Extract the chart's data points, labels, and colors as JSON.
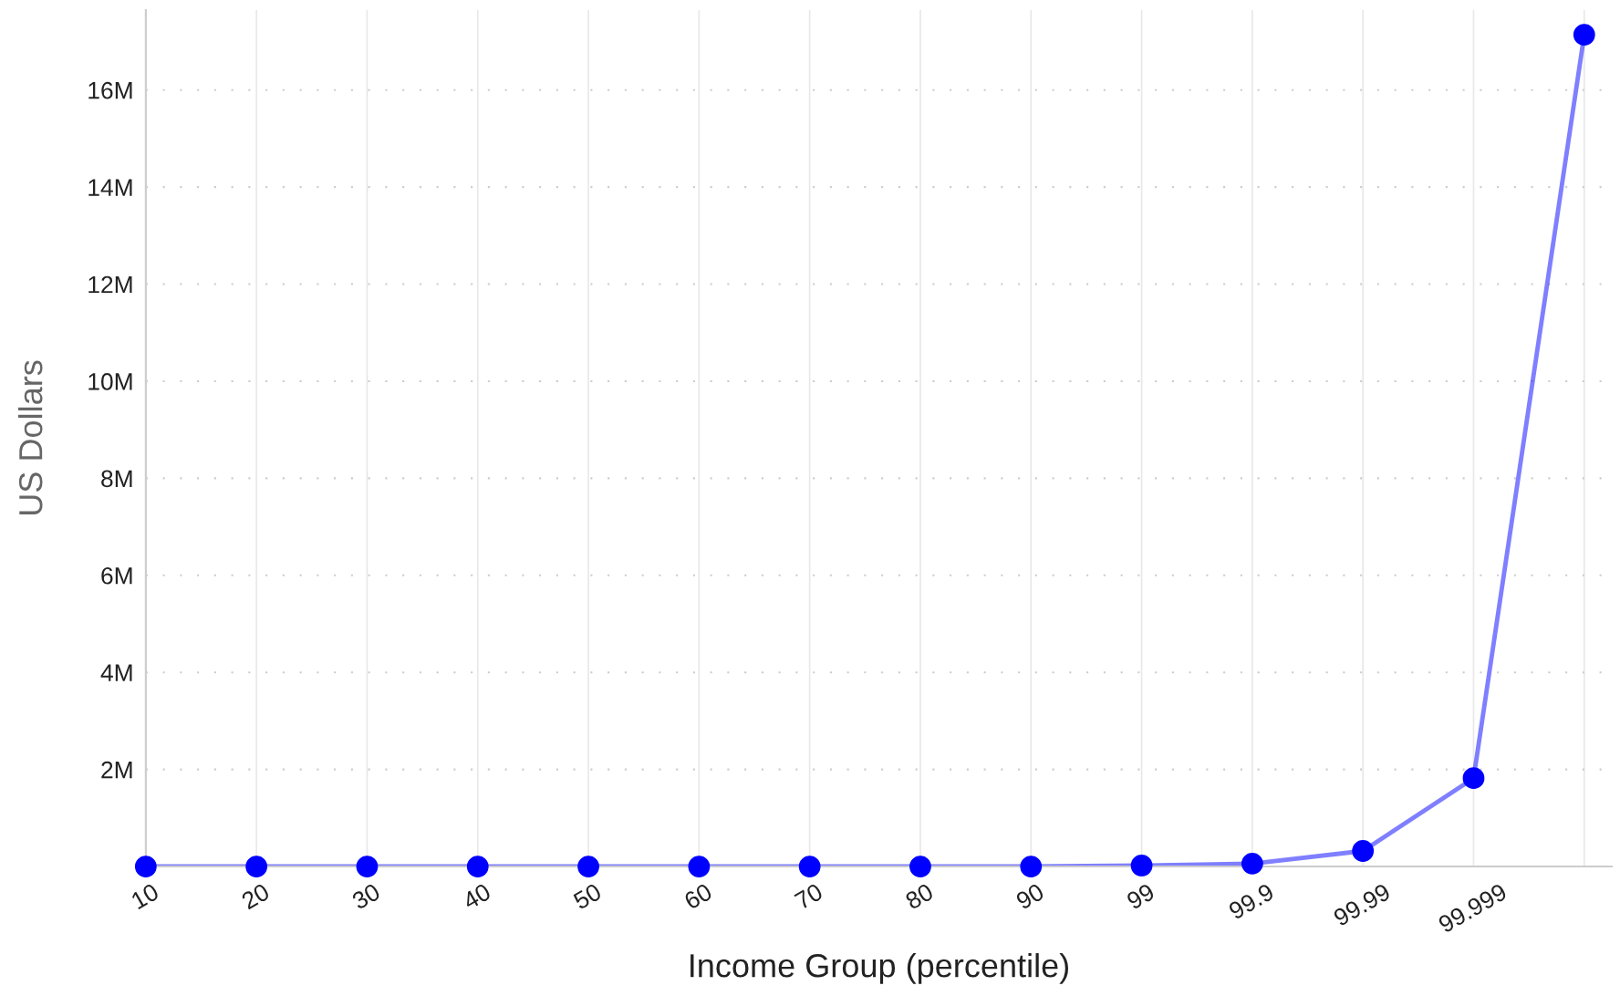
{
  "chart_data": {
    "type": "line",
    "xlabel": "Income Group (percentile)",
    "ylabel": "US Dollars",
    "categories": [
      "10",
      "20",
      "30",
      "40",
      "50",
      "60",
      "70",
      "80",
      "90",
      "99",
      "99.9",
      "99.99",
      "99.999",
      null
    ],
    "series": [
      {
        "color": "#0000ff",
        "values": [
          0,
          0,
          0,
          0,
          0,
          0,
          0,
          0,
          0,
          20000,
          60000,
          320000,
          1820000,
          17140000
        ]
      }
    ],
    "ylim": [
      0,
      17650000
    ],
    "yticks": [
      {
        "value": 2000000,
        "label": "2M"
      },
      {
        "value": 4000000,
        "label": "4M"
      },
      {
        "value": 6000000,
        "label": "6M"
      },
      {
        "value": 8000000,
        "label": "8M"
      },
      {
        "value": 10000000,
        "label": "10M"
      },
      {
        "value": 12000000,
        "label": "12M"
      },
      {
        "value": 14000000,
        "label": "14M"
      },
      {
        "value": 16000000,
        "label": "16M"
      }
    ],
    "grid": true,
    "marker": "circle",
    "line_style": "solid",
    "legend": false
  }
}
